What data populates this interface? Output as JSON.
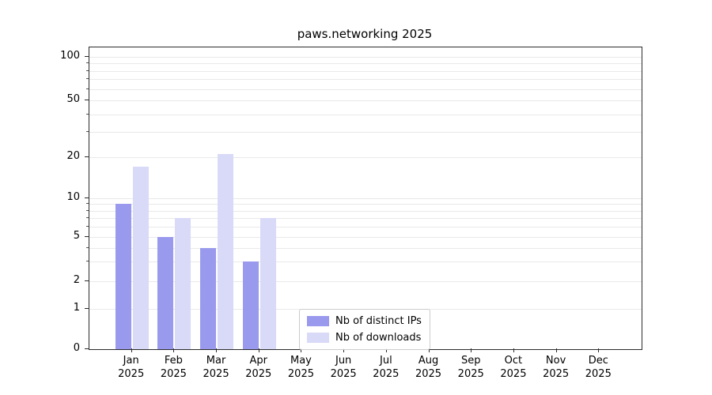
{
  "title": "paws.networking 2025",
  "chart_data": {
    "type": "bar",
    "title": "paws.networking 2025",
    "yscale": "symlog",
    "grid": "horizontal-log-minor",
    "categories": [
      "Jan",
      "Feb",
      "Mar",
      "Apr",
      "May",
      "Jun",
      "Jul",
      "Aug",
      "Sep",
      "Oct",
      "Nov",
      "Dec"
    ],
    "year": "2025",
    "yticks": [
      0,
      1,
      2,
      5,
      10,
      20,
      50,
      100
    ],
    "minor_gridline_values": [
      1,
      2,
      3,
      4,
      5,
      6,
      7,
      8,
      9,
      10,
      20,
      30,
      40,
      50,
      60,
      70,
      80,
      90,
      100
    ],
    "ylim": [
      0,
      115
    ],
    "legend_position": "lower-center-inside",
    "series": [
      {
        "name": "Nb of distinct IPs",
        "color": "#9999ee",
        "values": [
          9,
          5,
          4,
          3,
          0,
          0,
          0,
          0,
          0,
          0,
          0,
          0
        ]
      },
      {
        "name": "Nb of downloads",
        "color": "#d9d9f8",
        "values": [
          17,
          7,
          21,
          7,
          0,
          0,
          0,
          0,
          0,
          0,
          0,
          0
        ]
      }
    ]
  }
}
